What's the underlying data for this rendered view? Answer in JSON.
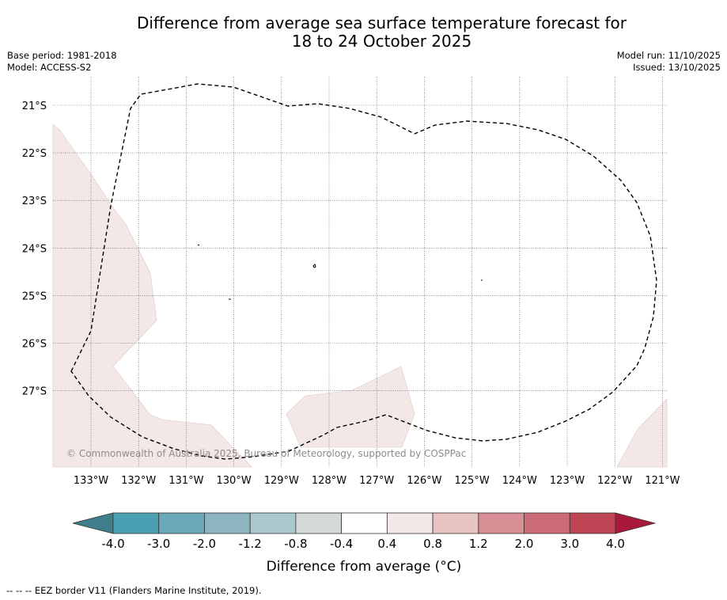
{
  "title": {
    "line1": "Difference from average sea surface temperature forecast for",
    "line2": "18 to 24 October 2025"
  },
  "meta": {
    "base_period": "Base period: 1981-2018",
    "model": "Model: ACCESS-S2",
    "model_run": "Model run: 11/10/2025",
    "issued": "Issued: 13/10/2025"
  },
  "map": {
    "latitudes": [
      "21°S",
      "22°S",
      "23°S",
      "24°S",
      "25°S",
      "26°S",
      "27°S"
    ],
    "longitudes": [
      "133°W",
      "132°W",
      "131°W",
      "130°W",
      "129°W",
      "128°W",
      "127°W",
      "126°W",
      "125°W",
      "124°W",
      "123°W",
      "122°W",
      "121°W"
    ],
    "copyright": "© Commonwealth of Australia 2025, Bureau of Meteorology, supported by COSPPac",
    "anomaly_fill_color": "#f4e8e7",
    "eez_border_color": "#000000"
  },
  "colorbar": {
    "labels": [
      "-4.0",
      "-3.0",
      "-2.0",
      "-1.2",
      "-0.8",
      "-0.4",
      "0.4",
      "0.8",
      "1.2",
      "2.0",
      "3.0",
      "4.0"
    ],
    "colors": [
      "#4aa0b2",
      "#6ba9b8",
      "#8db5c1",
      "#aac7cb",
      "#d3d8d8",
      "#ffffff",
      "#f4e8e7",
      "#e8c4c3",
      "#d88e95",
      "#cc6b76",
      "#bd4553"
    ],
    "under_color": "#3f7f8c",
    "over_color": "#a8193a",
    "title": "Difference from average (°C)"
  },
  "footnote": "--  --  -- EEZ border V11 (Flanders Marine Institute, 2019)."
}
